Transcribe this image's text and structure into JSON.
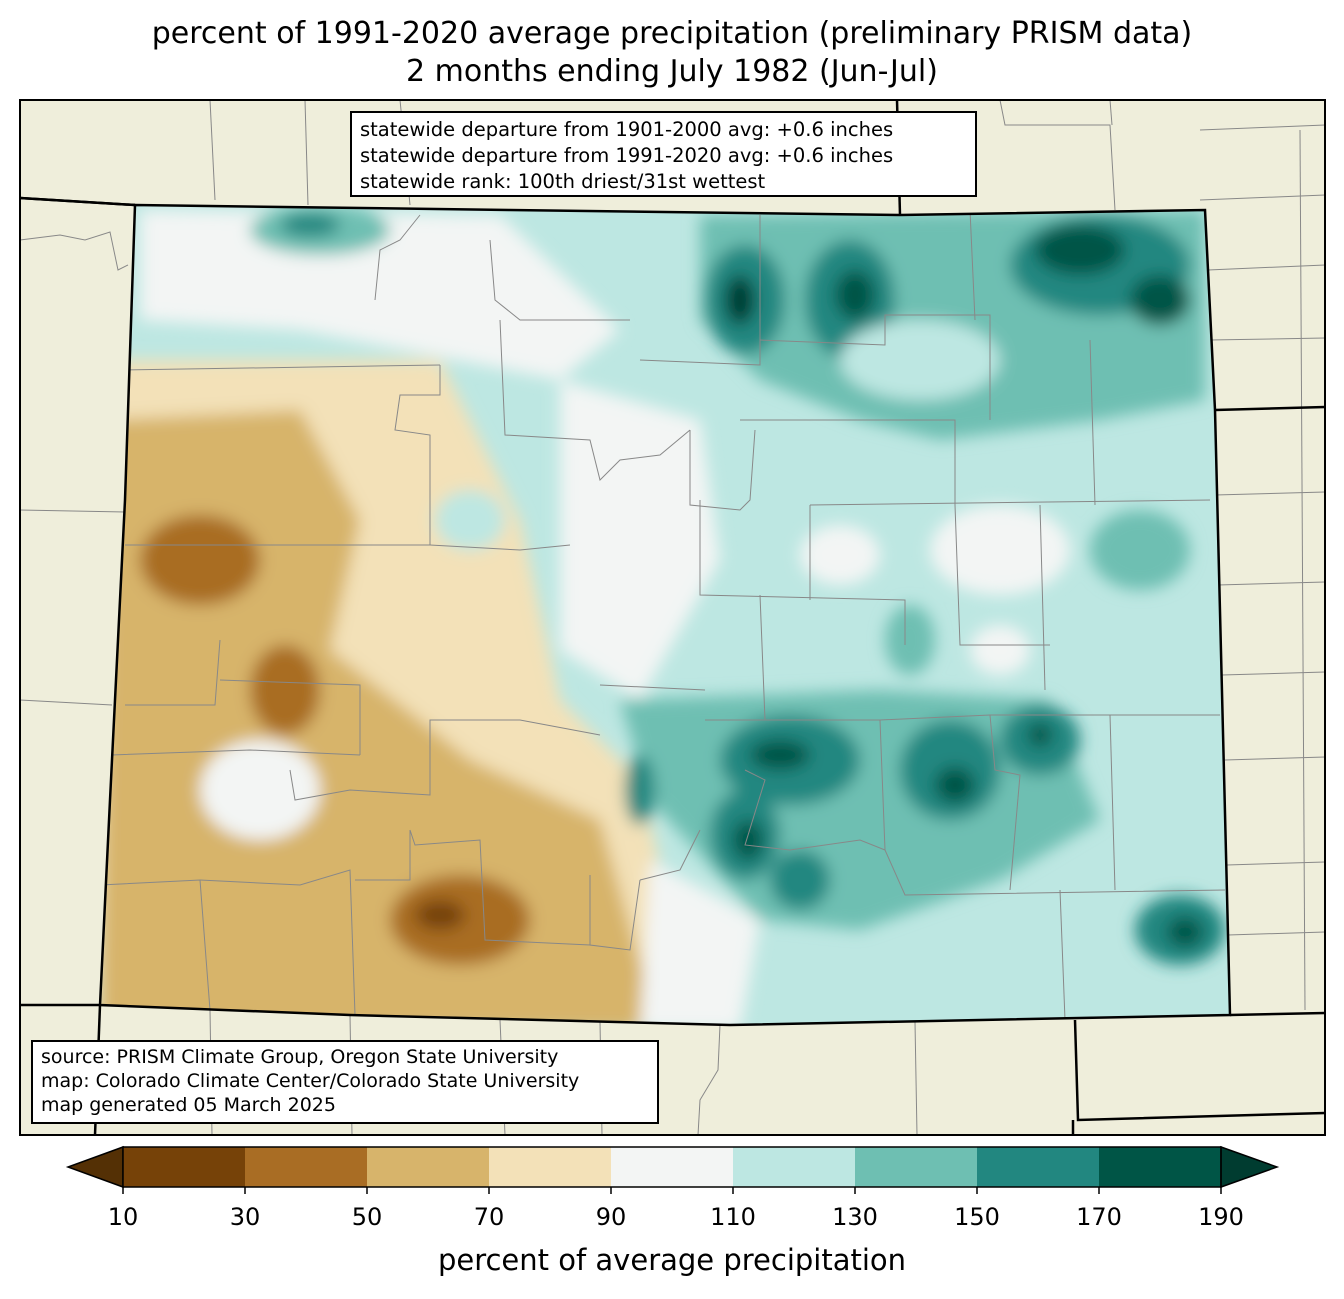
{
  "title": {
    "line1": "percent of 1991-2020 average precipitation (preliminary PRISM data)",
    "line2": "2 months ending July 1982 (Jun-Jul)"
  },
  "stats": {
    "line1": "statewide departure from 1901-2000 avg: +0.6 inches",
    "line2": "statewide departure from 1991-2020 avg: +0.6 inches",
    "line3": "statewide rank: 100th driest/31st wettest"
  },
  "source": {
    "line1": "source: PRISM Climate Group, Oregon State University",
    "line2": "map: Colorado Climate Center/Colorado State University",
    "line3": "map generated 05 March 2025"
  },
  "colorbar": {
    "label": "percent of average precipitation",
    "ticks": [
      "10",
      "30",
      "50",
      "70",
      "90",
      "110",
      "130",
      "150",
      "170",
      "190"
    ],
    "colors": [
      "#543005",
      "#764208",
      "#a96d24",
      "#d7b46b",
      "#f3e1b8",
      "#f3f5f4",
      "#bde7e2",
      "#6ebfb2",
      "#228780",
      "#005546",
      "#003c30"
    ]
  },
  "map_colors": {
    "background": "#efeedb",
    "state_border": "#000000",
    "county_border": "#888888"
  }
}
